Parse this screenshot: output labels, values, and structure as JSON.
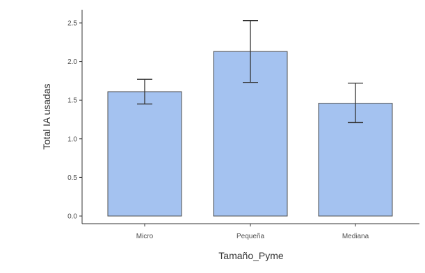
{
  "chart_data": {
    "type": "bar",
    "title": "",
    "xlabel": "Tamaño_Pyme",
    "ylabel": "Total IA usadas",
    "categories": [
      "Micro",
      "Pequeña",
      "Mediana"
    ],
    "values": [
      1.61,
      2.13,
      1.46
    ],
    "error_bars": [
      {
        "low": 1.45,
        "high": 1.77
      },
      {
        "low": 1.73,
        "high": 2.53
      },
      {
        "low": 1.21,
        "high": 1.72
      }
    ],
    "yticks": [
      "0.0",
      "0.5",
      "1.0",
      "1.5",
      "2.0",
      "2.5"
    ],
    "ylim": [
      0,
      2.6
    ],
    "grid": false,
    "colors": {
      "bar_fill": "#a4c2f0",
      "bar_stroke": "#4d4d4d",
      "error_bar": "#333333",
      "axis": "#333333"
    }
  }
}
